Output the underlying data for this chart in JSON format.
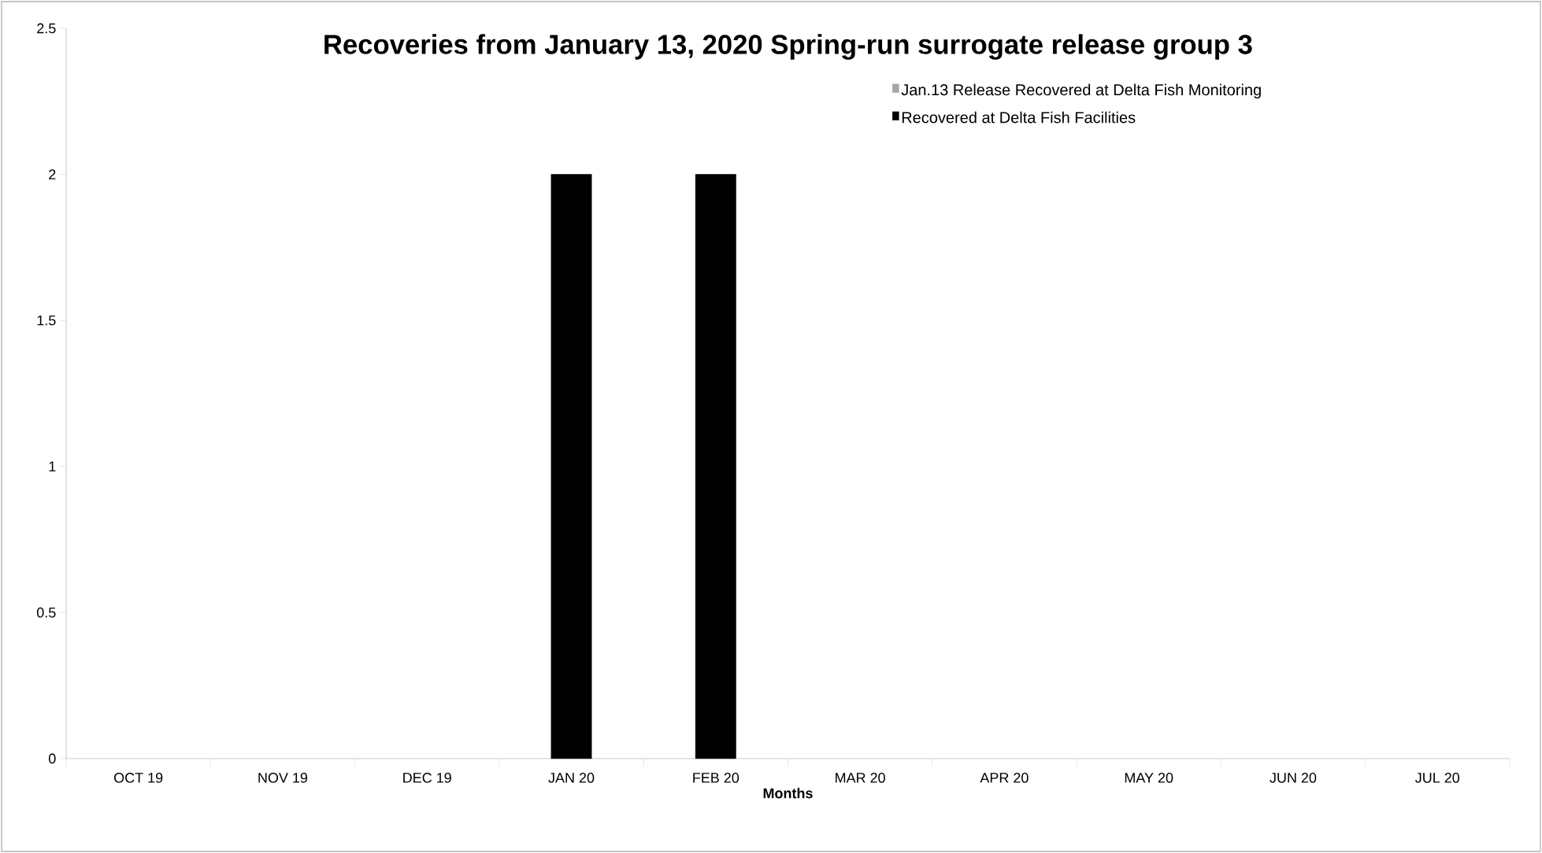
{
  "chart_data": {
    "type": "bar",
    "title": "Recoveries from January 13, 2020 Spring-run surrogate release group 3",
    "xlabel": "Months",
    "categories": [
      "OCT 19",
      "NOV 19",
      "DEC 19",
      "JAN 20",
      "FEB 20",
      "MAR 20",
      "APR 20",
      "MAY 20",
      "JUN 20",
      "JUL 20"
    ],
    "series": [
      {
        "name": "Jan.13 Release Recovered at Delta Fish Monitoring",
        "color": "#a6a6a6",
        "values": [
          0,
          0,
          0,
          0,
          0,
          0,
          0,
          0,
          0,
          0
        ]
      },
      {
        "name": "Recovered at Delta Fish Facilities",
        "color": "#000000",
        "values": [
          0,
          0,
          0,
          2,
          2,
          0,
          0,
          0,
          0,
          0
        ]
      }
    ],
    "stacked": true,
    "ylim": [
      0,
      2.5
    ],
    "yticks": [
      0,
      0.5,
      1,
      1.5,
      2,
      2.5
    ],
    "legend": "top right"
  }
}
